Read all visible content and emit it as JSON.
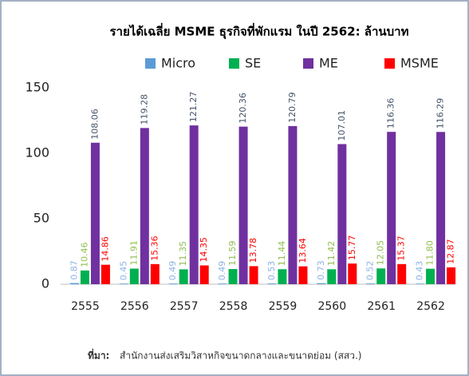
{
  "chart_data": {
    "type": "bar",
    "title": "รายได้เฉลี่ย MSME ธุรกิจที่พักแรม ในปี 2562: ล้านบาท",
    "categories": [
      "2555",
      "2556",
      "2557",
      "2558",
      "2559",
      "2560",
      "2561",
      "2562"
    ],
    "series": [
      {
        "name": "Micro",
        "color": "#5b9bd5",
        "label_color": "#8eb4e3",
        "values": [
          0.87,
          0.45,
          0.49,
          0.49,
          0.53,
          0.73,
          0.52,
          0.43
        ],
        "value_labels": [
          "0.87",
          "0.45",
          "0.49",
          "0.49",
          "0.53",
          "0.73",
          "0.52",
          "0.43"
        ]
      },
      {
        "name": "SE",
        "color": "#00b050",
        "label_color": "#8fbf4f",
        "values": [
          10.46,
          11.91,
          11.35,
          11.59,
          11.44,
          11.42,
          12.05,
          11.8
        ],
        "value_labels": [
          "10.46",
          "11.91",
          "11.35",
          "11.59",
          "11.44",
          "11.42",
          "12.05",
          "11.80"
        ]
      },
      {
        "name": "ME",
        "color": "#7030a0",
        "label_color": "#44546a",
        "values": [
          108.06,
          119.28,
          121.27,
          120.36,
          120.79,
          107.01,
          116.36,
          116.29
        ],
        "value_labels": [
          "108.06",
          "119.28",
          "121.27",
          "120.36",
          "120.79",
          "107.01",
          "116.36",
          "116.29"
        ]
      },
      {
        "name": "MSME",
        "color": "#ff0000",
        "label_color": "#ff0000",
        "values": [
          14.86,
          15.36,
          14.35,
          13.78,
          13.64,
          15.77,
          15.37,
          12.87
        ],
        "value_labels": [
          "14.86",
          "15.36",
          "14.35",
          "13.78",
          "13.64",
          "15.77",
          "15.37",
          "12.87"
        ]
      }
    ],
    "ylim": [
      0,
      150
    ],
    "yticks": [
      0,
      50,
      100,
      150
    ],
    "grid": false,
    "source_label": "ที่มา:",
    "source": "สำนักงานส่งเสริมวิสาหกิจขนาดกลางและขนาดย่อม (สสว.)"
  }
}
